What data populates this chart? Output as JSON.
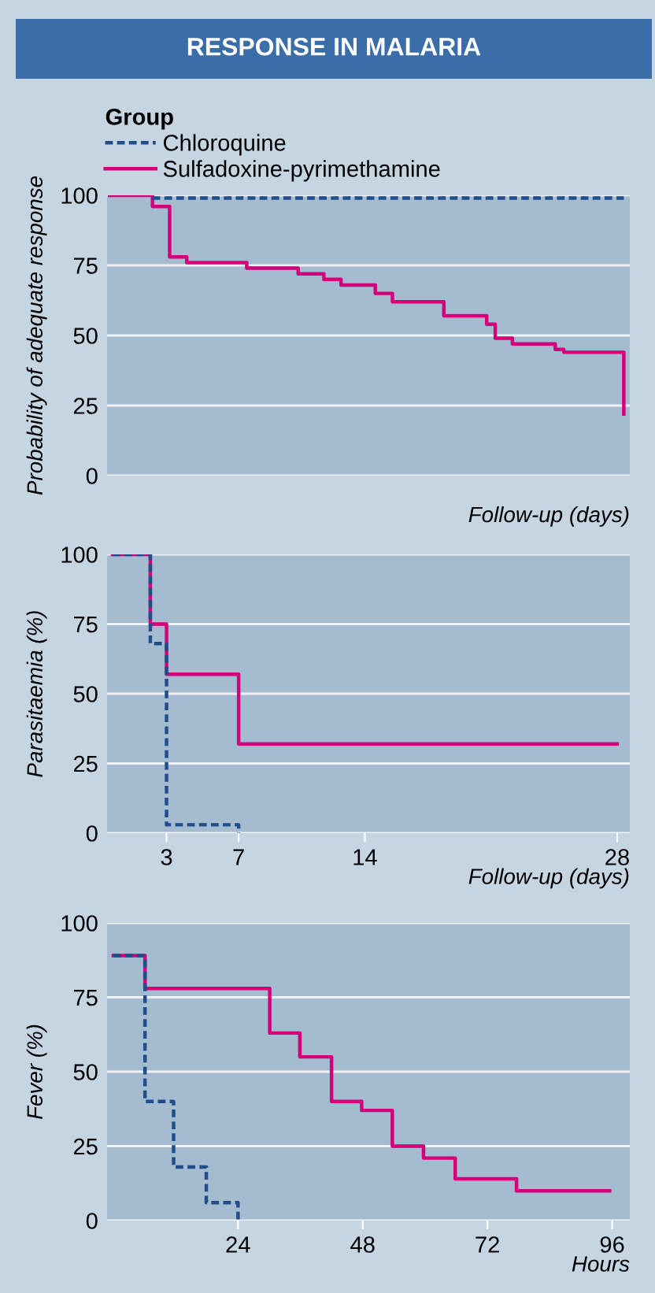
{
  "chart_data": [
    {
      "type": "step",
      "title": "RESPONSE IN MALARIA",
      "legend_title": "Group",
      "legend": "top left",
      "ylabel": "Probability of adequate response",
      "xlabel": "Follow-up (days)",
      "grid": "y",
      "tick_labels": "y",
      "line_style": "solid",
      "categories": [
        null,
        null,
        null,
        null,
        null,
        null,
        null,
        null,
        null,
        null,
        null,
        null,
        null,
        null,
        null,
        null,
        null,
        null,
        null,
        null,
        null,
        null,
        null,
        null,
        null,
        null,
        null,
        null,
        null,
        null,
        null,
        null,
        null,
        null,
        null,
        null,
        null,
        null,
        null,
        null,
        null,
        null,
        null,
        null,
        null,
        null,
        null,
        null,
        null,
        null,
        null,
        null,
        null,
        null,
        null,
        null,
        null,
        null,
        null,
        null,
        null
      ],
      "ylim": [
        0,
        100
      ],
      "yticks": [
        0,
        25,
        50,
        75,
        100
      ],
      "series": [
        {
          "name": "Chloroquine",
          "color": "#1f4e8c",
          "line_style": "dashed",
          "values": [
            null,
            null,
            null,
            null,
            null,
            99,
            99,
            99,
            99,
            99,
            99,
            99,
            99,
            99,
            99,
            99,
            99,
            99,
            99,
            99,
            99,
            99,
            99,
            99,
            99,
            99,
            99,
            99,
            99,
            99,
            99,
            99,
            99,
            99,
            99,
            99,
            99,
            99,
            99,
            99,
            99,
            99,
            99,
            99,
            99,
            99,
            99,
            99,
            99,
            99,
            99,
            99,
            99,
            99,
            99,
            99,
            99,
            99,
            99,
            99,
            99
          ]
        },
        {
          "name": "Sulfadoxine-pyrimethamine",
          "color": "#d4007a",
          "values": [
            100,
            100,
            100,
            100,
            100,
            96,
            96,
            78,
            78,
            76,
            76,
            76,
            76,
            76,
            76,
            76,
            74,
            74,
            74,
            74,
            74,
            74,
            72,
            72,
            72,
            70,
            70,
            68,
            68,
            68,
            68,
            65,
            65,
            62,
            62,
            62,
            62,
            62,
            62,
            57,
            57,
            57,
            57,
            57,
            54,
            49,
            49,
            47,
            47,
            47,
            47,
            47,
            45,
            44,
            44,
            44,
            44,
            44,
            44,
            44,
            22
          ]
        }
      ]
    },
    {
      "type": "step",
      "ylabel": "Parasitaemia (%)",
      "xlabel": "Follow-up (days)",
      "grid": "y",
      "line_style": "solid",
      "xlim": [
        -0.3,
        28.7
      ],
      "xticks": [
        3,
        7,
        14,
        28
      ],
      "ylim": [
        0,
        100
      ],
      "yticks": [
        0,
        25,
        50,
        75,
        100
      ],
      "series": [
        {
          "color": "#1f4e8c",
          "line_style": "dashed",
          "x": [
            0,
            2.1,
            3,
            7
          ],
          "values": [
            100,
            68,
            3,
            0
          ]
        },
        {
          "color": "#d4007a",
          "x": [
            0,
            2.1,
            3,
            7,
            28
          ],
          "values": [
            100,
            75,
            57,
            32,
            32
          ]
        }
      ]
    },
    {
      "type": "step",
      "ylabel": "Fever (%)",
      "xlabel": "Hours",
      "grid": "y",
      "line_style": "solid",
      "xlim": [
        -1.2,
        99.4
      ],
      "xticks": [
        24,
        48,
        72,
        96
      ],
      "ylim": [
        0,
        100
      ],
      "yticks": [
        0,
        25,
        50,
        75,
        100
      ],
      "series": [
        {
          "color": "#1f4e8c",
          "line_style": "dashed",
          "x": [
            0,
            6.1,
            11.6,
            17.9,
            24
          ],
          "values": [
            89,
            40,
            18,
            6,
            0
          ]
        },
        {
          "color": "#d4007a",
          "x": [
            0,
            6.1,
            30.1,
            35.9,
            42,
            47.8,
            53.7,
            59.7,
            65.8,
            77.6,
            95.5
          ],
          "values": [
            89,
            78,
            63,
            55,
            40,
            37,
            25,
            21,
            14,
            10,
            10
          ]
        }
      ]
    }
  ]
}
